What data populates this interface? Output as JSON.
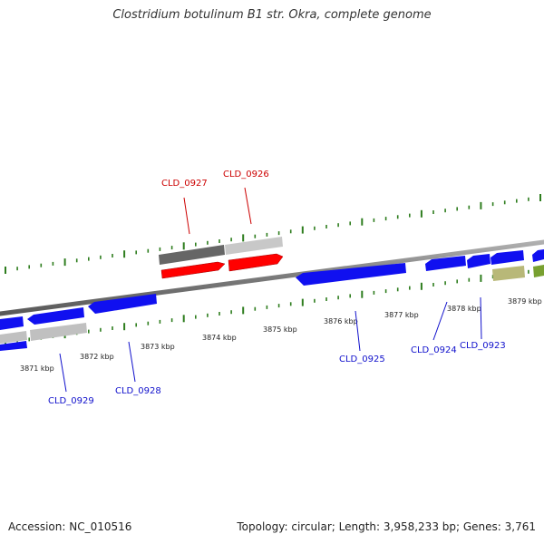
{
  "title": "Clostridium botulinum B1 str. Okra, complete genome",
  "footer": {
    "accession": "Accession: NC_010516",
    "summary": "Topology: circular; Length: 3,958,233 bp; Genes: 3,761"
  },
  "colors": {
    "highlight_gene": "#ff0000",
    "highlight_label": "#cc0000",
    "gene_blue": "#1010f0",
    "label_blue": "#1010cc",
    "gene_gray": "#c0c0c0",
    "gene_darkgray": "#6a6a6a",
    "gene_khaki": "#b8b878",
    "gene_olive": "#78a030",
    "tick_green": "#2e7d1e",
    "backbone": "#8a8a8a"
  },
  "scale_labels": [
    "3871 kbp",
    "3872 kbp",
    "3873 kbp",
    "3874 kbp",
    "3875 kbp",
    "3876 kbp",
    "3877 kbp",
    "3878 kbp",
    "3879 kbp"
  ],
  "gene_labels": [
    {
      "text": "CLD_0927",
      "highlight": true
    },
    {
      "text": "CLD_0926",
      "highlight": true
    },
    {
      "text": "CLD_0929",
      "highlight": false
    },
    {
      "text": "CLD_0928",
      "highlight": false
    },
    {
      "text": "CLD_0925",
      "highlight": false
    },
    {
      "text": "CLD_0924",
      "highlight": false
    },
    {
      "text": "CLD_0923",
      "highlight": false
    }
  ]
}
